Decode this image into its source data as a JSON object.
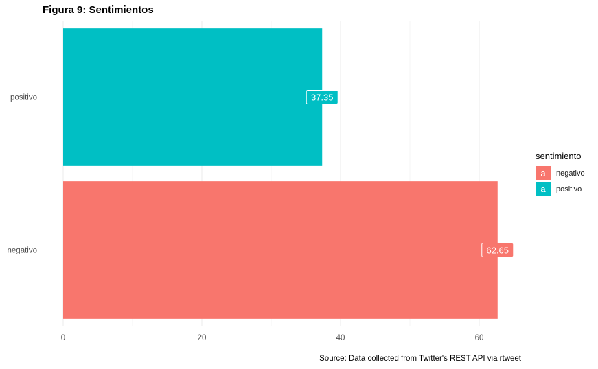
{
  "title": "Figura 9:  Sentimientos",
  "caption": "Source: Data collected from Twitter's REST API via rtweet",
  "legend": {
    "title": "sentimiento",
    "items": [
      {
        "label": "negativo",
        "color": "#F8766D",
        "key_glyph": "a"
      },
      {
        "label": "positivo",
        "color": "#00BFC4",
        "key_glyph": "a"
      }
    ]
  },
  "chart_data": {
    "type": "bar",
    "orientation": "horizontal",
    "categories": [
      "positivo",
      "negativo"
    ],
    "values": [
      37.35,
      62.65
    ],
    "data_labels": [
      "37.35",
      "62.65"
    ],
    "colors": [
      "#00BFC4",
      "#F8766D"
    ],
    "title": "Figura 9:  Sentimientos",
    "xlabel": "",
    "ylabel": "",
    "xlim": [
      0,
      65
    ],
    "x_ticks": [
      0,
      20,
      40,
      60
    ],
    "grid": true,
    "legend_position": "right"
  }
}
